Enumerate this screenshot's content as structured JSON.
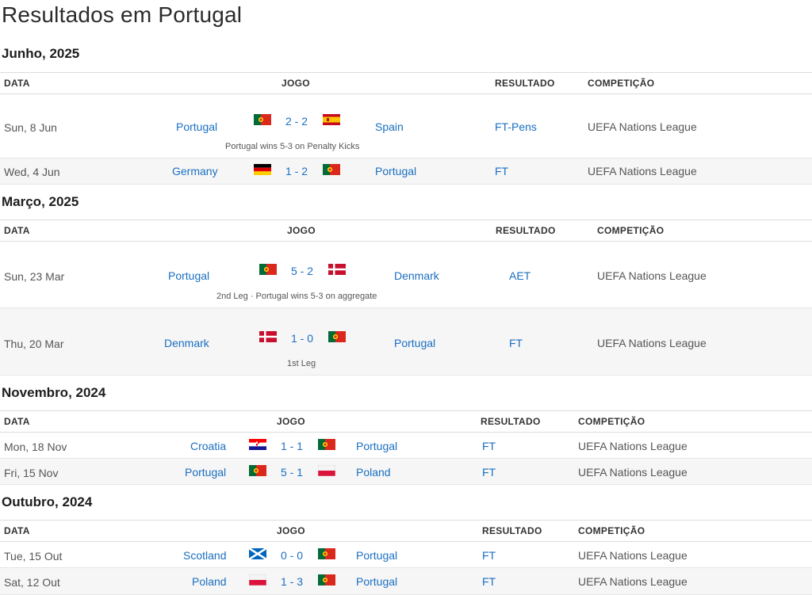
{
  "page_title": "Resultados em Portugal",
  "headers": {
    "date": "DATA",
    "game": "JOGO",
    "result": "RESULTADO",
    "competition": "COMPETIÇÃO"
  },
  "sections": [
    {
      "month": "Junho, 2025",
      "matches": [
        {
          "date": "Sun, 8 Jun",
          "home": "Portugal",
          "home_flag": "portugal-flag",
          "score": "2 - 2",
          "away": "Spain",
          "away_flag": "spain-flag",
          "result": "FT-Pens",
          "competition": "UEFA Nations League",
          "note": "Portugal wins 5-3 on Penalty Kicks"
        },
        {
          "date": "Wed, 4 Jun",
          "home": "Germany",
          "home_flag": "germany-flag",
          "score": "1 - 2",
          "away": "Portugal",
          "away_flag": "portugal-flag",
          "result": "FT",
          "competition": "UEFA Nations League",
          "note": ""
        }
      ]
    },
    {
      "month": "Março, 2025",
      "matches": [
        {
          "date": "Sun, 23 Mar",
          "home": "Portugal",
          "home_flag": "portugal-flag",
          "score": "5 - 2",
          "away": "Denmark",
          "away_flag": "denmark-flag",
          "result": "AET",
          "competition": "UEFA Nations League",
          "note": "2nd Leg · Portugal wins 5-3 on aggregate"
        },
        {
          "date": "Thu, 20 Mar",
          "home": "Denmark",
          "home_flag": "denmark-flag",
          "score": "1 - 0",
          "away": "Portugal",
          "away_flag": "portugal-flag",
          "result": "FT",
          "competition": "UEFA Nations League",
          "note": "1st Leg"
        }
      ]
    },
    {
      "month": "Novembro, 2024",
      "matches": [
        {
          "date": "Mon, 18 Nov",
          "home": "Croatia",
          "home_flag": "croatia-flag",
          "score": "1 - 1",
          "away": "Portugal",
          "away_flag": "portugal-flag",
          "result": "FT",
          "competition": "UEFA Nations League",
          "note": ""
        },
        {
          "date": "Fri, 15 Nov",
          "home": "Portugal",
          "home_flag": "portugal-flag",
          "score": "5 - 1",
          "away": "Poland",
          "away_flag": "poland-flag",
          "result": "FT",
          "competition": "UEFA Nations League",
          "note": ""
        }
      ]
    },
    {
      "month": "Outubro, 2024",
      "matches": [
        {
          "date": "Tue, 15 Out",
          "home": "Scotland",
          "home_flag": "scotland-flag",
          "score": "0 - 0",
          "away": "Portugal",
          "away_flag": "portugal-flag",
          "result": "FT",
          "competition": "UEFA Nations League",
          "note": ""
        },
        {
          "date": "Sat, 12 Out",
          "home": "Poland",
          "home_flag": "poland-flag",
          "score": "1 - 3",
          "away": "Portugal",
          "away_flag": "portugal-flag",
          "result": "FT",
          "competition": "UEFA Nations League",
          "note": ""
        }
      ]
    }
  ]
}
